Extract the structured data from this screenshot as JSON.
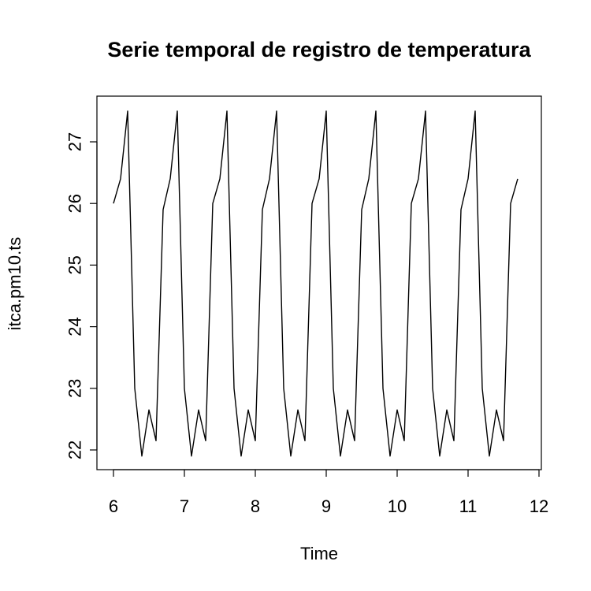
{
  "chart_data": {
    "type": "line",
    "title": "Serie temporal de registro de temperatura",
    "xlabel": "Time",
    "ylabel": "itca.pm10.ts",
    "xlim": [
      6,
      12
    ],
    "ylim": [
      22,
      27.5
    ],
    "xticks": [
      6,
      7,
      8,
      9,
      10,
      11,
      12
    ],
    "yticks": [
      22,
      23,
      24,
      25,
      26,
      27
    ],
    "grid": false,
    "frequency": 10,
    "start": 6,
    "cycle_pattern": [
      26.0,
      26.4,
      27.5,
      23.0,
      21.9,
      22.65,
      22.15,
      25.9,
      26.4,
      27.5,
      23.0,
      21.9,
      22.65,
      22.15
    ],
    "series": [
      {
        "values": [
          26.0,
          26.4,
          27.5,
          23.0,
          21.9,
          22.65,
          22.15,
          25.9,
          26.4,
          27.5,
          23.0,
          21.9,
          22.65,
          22.15,
          26.0,
          26.4,
          27.5,
          23.0,
          21.9,
          22.65,
          22.15,
          25.9,
          26.4,
          27.5,
          23.0,
          21.9,
          22.65,
          22.15,
          26.0,
          26.4,
          27.5,
          23.0,
          21.9,
          22.65,
          22.15,
          25.9,
          26.4,
          27.5,
          23.0,
          21.9,
          22.65,
          22.15,
          26.0,
          26.4,
          27.5,
          23.0,
          21.9,
          22.65,
          22.15,
          25.9,
          26.4,
          27.5,
          23.0,
          21.9,
          22.65,
          22.15,
          26.0,
          26.4
        ]
      }
    ]
  }
}
